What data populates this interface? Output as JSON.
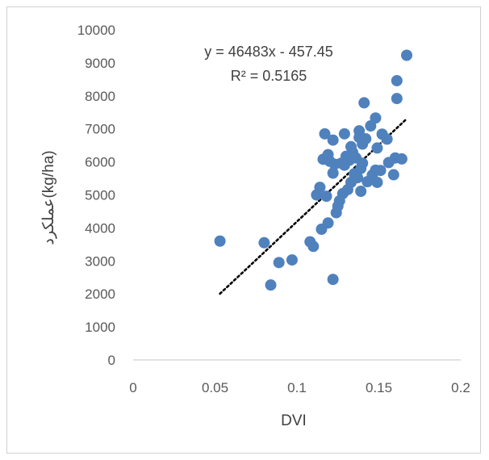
{
  "chart_data": {
    "type": "scatter",
    "xlabel": "DVI",
    "ylabel": "(kg/ha)عملکرد",
    "xlim": [
      0,
      0.2
    ],
    "ylim": [
      0,
      10000
    ],
    "x_ticks": [
      "0",
      "0.05",
      "0.1",
      "0.15",
      "0.2"
    ],
    "y_ticks": [
      "0",
      "1000",
      "2000",
      "3000",
      "4000",
      "5000",
      "6000",
      "7000",
      "8000",
      "9000",
      "10000"
    ],
    "grid": false,
    "legend": "none",
    "marker_color": "#4f81bd",
    "trendline": {
      "style": "dotted",
      "color": "#000000",
      "slope": 46483,
      "intercept": -457.45,
      "x_range": [
        0.053,
        0.167
      ],
      "equation": "y = 46483x - 457.45",
      "r_squared": "R² = 0.5165"
    },
    "points": [
      {
        "x": 0.053,
        "y": 3600
      },
      {
        "x": 0.08,
        "y": 3550
      },
      {
        "x": 0.084,
        "y": 2270
      },
      {
        "x": 0.089,
        "y": 2950
      },
      {
        "x": 0.097,
        "y": 3030
      },
      {
        "x": 0.108,
        "y": 3580
      },
      {
        "x": 0.11,
        "y": 3440
      },
      {
        "x": 0.112,
        "y": 5000
      },
      {
        "x": 0.114,
        "y": 5230
      },
      {
        "x": 0.115,
        "y": 3960
      },
      {
        "x": 0.116,
        "y": 6080
      },
      {
        "x": 0.117,
        "y": 6850
      },
      {
        "x": 0.118,
        "y": 4960
      },
      {
        "x": 0.119,
        "y": 4150
      },
      {
        "x": 0.119,
        "y": 6220
      },
      {
        "x": 0.12,
        "y": 6020
      },
      {
        "x": 0.122,
        "y": 2440
      },
      {
        "x": 0.122,
        "y": 5660
      },
      {
        "x": 0.122,
        "y": 6660
      },
      {
        "x": 0.123,
        "y": 5930
      },
      {
        "x": 0.124,
        "y": 4460
      },
      {
        "x": 0.125,
        "y": 4660
      },
      {
        "x": 0.126,
        "y": 4820
      },
      {
        "x": 0.127,
        "y": 5960
      },
      {
        "x": 0.128,
        "y": 5040
      },
      {
        "x": 0.129,
        "y": 5900
      },
      {
        "x": 0.129,
        "y": 6850
      },
      {
        "x": 0.13,
        "y": 6170
      },
      {
        "x": 0.131,
        "y": 5160
      },
      {
        "x": 0.132,
        "y": 6050
      },
      {
        "x": 0.133,
        "y": 6460
      },
      {
        "x": 0.133,
        "y": 5380
      },
      {
        "x": 0.134,
        "y": 6290
      },
      {
        "x": 0.135,
        "y": 5640
      },
      {
        "x": 0.136,
        "y": 6120
      },
      {
        "x": 0.137,
        "y": 5520
      },
      {
        "x": 0.138,
        "y": 6940
      },
      {
        "x": 0.138,
        "y": 6740
      },
      {
        "x": 0.139,
        "y": 5800
      },
      {
        "x": 0.139,
        "y": 5110
      },
      {
        "x": 0.14,
        "y": 5960
      },
      {
        "x": 0.14,
        "y": 6540
      },
      {
        "x": 0.141,
        "y": 7790
      },
      {
        "x": 0.142,
        "y": 6700
      },
      {
        "x": 0.143,
        "y": 5400
      },
      {
        "x": 0.145,
        "y": 7090
      },
      {
        "x": 0.146,
        "y": 5600
      },
      {
        "x": 0.148,
        "y": 5750
      },
      {
        "x": 0.148,
        "y": 7330
      },
      {
        "x": 0.149,
        "y": 6420
      },
      {
        "x": 0.149,
        "y": 5380
      },
      {
        "x": 0.151,
        "y": 5740
      },
      {
        "x": 0.152,
        "y": 6840
      },
      {
        "x": 0.155,
        "y": 6690
      },
      {
        "x": 0.156,
        "y": 5980
      },
      {
        "x": 0.159,
        "y": 5610
      },
      {
        "x": 0.16,
        "y": 6120
      },
      {
        "x": 0.161,
        "y": 7920
      },
      {
        "x": 0.161,
        "y": 8460
      },
      {
        "x": 0.164,
        "y": 6090
      },
      {
        "x": 0.167,
        "y": 9230
      }
    ]
  }
}
